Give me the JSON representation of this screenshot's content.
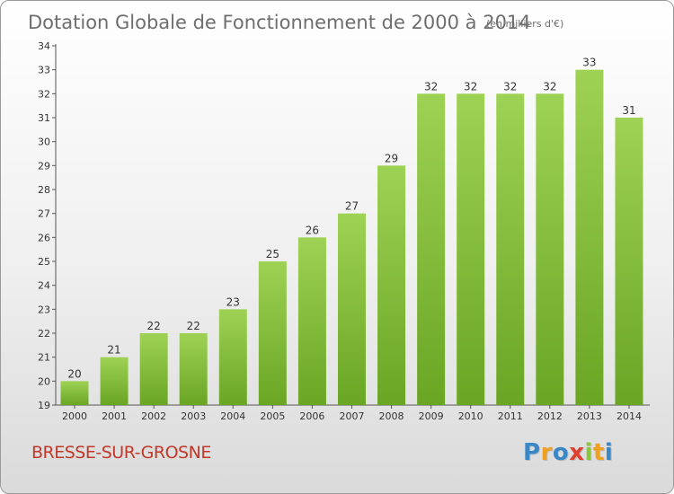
{
  "title": "Dotation Globale de Fonctionnement de 2000 à 2014",
  "subtitle": "(en milliers d'€)",
  "place_name": "BRESSE-SUR-GROSNE",
  "logo": {
    "text": "Proxiti",
    "letters": [
      "P",
      "r",
      "o",
      "x",
      "i",
      "t",
      "i"
    ],
    "letter_colors": [
      "#3a87c8",
      "#f0a020",
      "#3a87c8",
      "#e04030",
      "#8cc63f",
      "#f0a020",
      "#3a87c8"
    ]
  },
  "colors": {
    "bar_top": "#9ed255",
    "bar_bottom": "#6aa524",
    "title": "#6e6e6e",
    "place_name": "#c0392b"
  },
  "chart_data": {
    "type": "bar",
    "title": "Dotation Globale de Fonctionnement de 2000 à 2014",
    "subtitle": "(en milliers d'€)",
    "xlabel": "",
    "ylabel": "",
    "categories": [
      "2000",
      "2001",
      "2002",
      "2003",
      "2004",
      "2005",
      "2006",
      "2007",
      "2008",
      "2009",
      "2010",
      "2011",
      "2012",
      "2013",
      "2014"
    ],
    "values": [
      20,
      21,
      22,
      22,
      23,
      25,
      26,
      27,
      29,
      32,
      32,
      32,
      32,
      33,
      31
    ],
    "ylim": [
      19,
      34
    ],
    "yticks": [
      19,
      20,
      21,
      22,
      23,
      24,
      25,
      26,
      27,
      28,
      29,
      30,
      31,
      32,
      33,
      34
    ],
    "grid": false,
    "data_labels": true
  }
}
